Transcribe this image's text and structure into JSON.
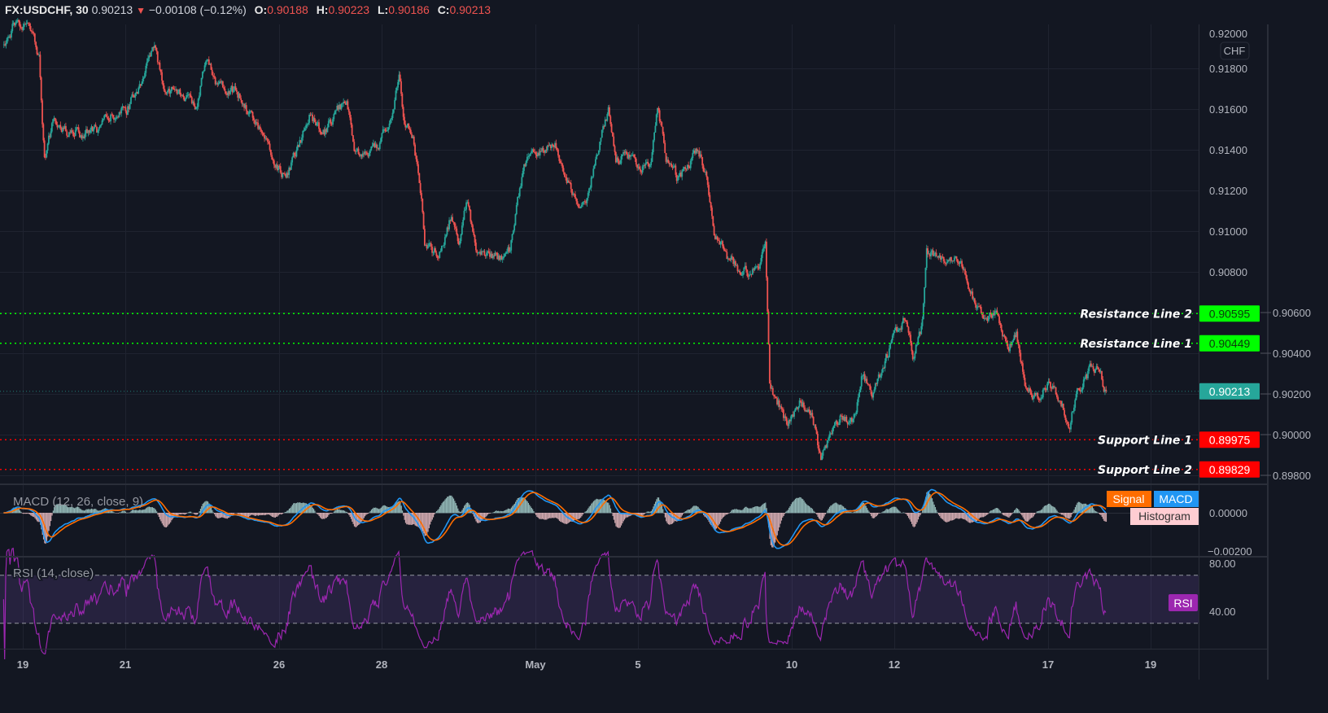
{
  "header": {
    "symbol": "FX:USDCHF, 30",
    "last": "0.90213",
    "change": "−0.00108 (−0.12%)",
    "open_label": "O:",
    "open": "0.90188",
    "high_label": "H:",
    "high": "0.90223",
    "low_label": "L:",
    "low": "0.90186",
    "close_label": "C:",
    "close": "0.90213",
    "direction_icon": "triangle-down-icon"
  },
  "colors": {
    "background": "#131722",
    "up": "#26a69a",
    "down": "#ef5350",
    "resistance": "#00ff00",
    "support": "#ff0000",
    "current": "#26a69a",
    "macd": "#2196f3",
    "signal": "#ff6d00",
    "histogram_label": "#ffcdd2",
    "rsi": "#9c27b0"
  },
  "chart_data": [
    {
      "type": "candlestick",
      "title": "FX:USDCHF, 30",
      "currency_label": "CHF",
      "ylim": [
        0.8975,
        0.92
      ],
      "y_ticks": [
        "0.92000",
        "0.91800",
        "0.91600",
        "0.91400",
        "0.91200",
        "0.91000",
        "0.90800",
        "0.90600",
        "0.90400",
        "0.90200",
        "0.90000",
        "0.89800"
      ],
      "x_ticks": [
        {
          "label": "19",
          "day": "04-19"
        },
        {
          "label": "21",
          "day": "04-21"
        },
        {
          "label": "26",
          "day": "04-26"
        },
        {
          "label": "28",
          "day": "04-28"
        },
        {
          "label": "May",
          "day": "05-03"
        },
        {
          "label": "5",
          "day": "05-05"
        },
        {
          "label": "10",
          "day": "05-10"
        },
        {
          "label": "12",
          "day": "05-12"
        },
        {
          "label": "17",
          "day": "05-17"
        },
        {
          "label": "19",
          "day": "05-19"
        }
      ],
      "grid": true,
      "close_path": [
        [
          "04-16 15:00",
          0.91896
        ],
        [
          "04-16 19:00",
          0.91996
        ],
        [
          "04-19 04:30",
          0.91996
        ],
        [
          "04-19 07:30",
          0.91856
        ],
        [
          "04-19 10:00",
          0.91356
        ],
        [
          "04-19 14:00",
          0.91536
        ],
        [
          "04-19 20:00",
          0.91496
        ],
        [
          "04-20 03:30",
          0.91476
        ],
        [
          "04-20 11:00",
          0.91496
        ],
        [
          "04-20 18:30",
          0.91576
        ],
        [
          "04-21 00:30",
          0.91596
        ],
        [
          "04-21 08:00",
          0.91756
        ],
        [
          "04-21 13:30",
          0.91896
        ],
        [
          "04-21 17:30",
          0.91716
        ],
        [
          "04-22 01:00",
          0.91676
        ],
        [
          "04-22 09:00",
          0.91616
        ],
        [
          "04-22 14:30",
          0.91856
        ],
        [
          "04-22 18:30",
          0.91736
        ],
        [
          "04-23 02:00",
          0.91696
        ],
        [
          "04-23 07:30",
          0.91636
        ],
        [
          "04-23 15:00",
          0.91496
        ],
        [
          "04-23 21:00",
          0.91356
        ],
        [
          "04-26 03:00",
          0.91256
        ],
        [
          "04-26 09:00",
          0.91416
        ],
        [
          "04-26 14:30",
          0.91576
        ],
        [
          "04-26 20:00",
          0.91456
        ],
        [
          "04-27 02:00",
          0.91576
        ],
        [
          "04-27 07:30",
          0.91656
        ],
        [
          "04-27 11:30",
          0.91396
        ],
        [
          "04-27 17:00",
          0.91356
        ],
        [
          "04-27 23:00",
          0.91436
        ],
        [
          "04-28 05:00",
          0.91576
        ],
        [
          "04-28 08:00",
          0.91796
        ],
        [
          "04-28 10:30",
          0.91536
        ],
        [
          "04-28 14:30",
          0.91456
        ],
        [
          "04-28 18:30",
          0.91176
        ],
        [
          "04-28 20:00",
          0.90936
        ],
        [
          "04-29 02:30",
          0.90876
        ],
        [
          "04-29 08:30",
          0.91076
        ],
        [
          "04-29 12:00",
          0.90936
        ],
        [
          "04-29 16:00",
          0.91156
        ],
        [
          "04-29 20:00",
          0.90896
        ],
        [
          "04-30 04:30",
          0.90856
        ],
        [
          "04-30 12:00",
          0.90916
        ],
        [
          "04-30 16:00",
          0.91176
        ],
        [
          "04-30 20:00",
          0.91356
        ],
        [
          "05-03 04:30",
          0.91396
        ],
        [
          "05-03 10:00",
          0.91416
        ],
        [
          "05-03 16:00",
          0.91216
        ],
        [
          "05-03 20:00",
          0.91096
        ],
        [
          "05-04 00:30",
          0.91176
        ],
        [
          "05-04 04:00",
          0.91356
        ],
        [
          "05-04 10:00",
          0.91596
        ],
        [
          "05-04 13:30",
          0.91336
        ],
        [
          "05-04 17:30",
          0.91376
        ],
        [
          "05-04 23:30",
          0.91336
        ],
        [
          "05-05 05:30",
          0.91296
        ],
        [
          "05-05 09:00",
          0.91616
        ],
        [
          "05-05 13:00",
          0.91376
        ],
        [
          "05-05 18:30",
          0.91256
        ],
        [
          "05-06 00:30",
          0.91336
        ],
        [
          "05-06 04:00",
          0.91416
        ],
        [
          "05-06 08:00",
          0.91256
        ],
        [
          "05-06 12:00",
          0.90976
        ],
        [
          "05-06 17:30",
          0.90876
        ],
        [
          "05-06 23:00",
          0.90816
        ],
        [
          "05-07 05:00",
          0.90776
        ],
        [
          "05-07 09:00",
          0.90856
        ],
        [
          "05-07 11:30",
          0.90936
        ],
        [
          "05-07 13:30",
          0.90256
        ],
        [
          "05-07 18:30",
          0.90136
        ],
        [
          "05-07 22:00",
          0.90036
        ],
        [
          "05-10 04:00",
          0.90156
        ],
        [
          "05-10 09:30",
          0.90096
        ],
        [
          "05-10 13:30",
          0.89876
        ],
        [
          "05-10 17:00",
          0.89976
        ],
        [
          "05-10 23:00",
          0.90096
        ],
        [
          "05-11 04:30",
          0.90056
        ],
        [
          "05-11 08:30",
          0.90276
        ],
        [
          "05-11 14:00",
          0.90216
        ],
        [
          "05-11 20:00",
          0.90376
        ],
        [
          "05-12 01:30",
          0.90516
        ],
        [
          "05-12 05:30",
          0.90576
        ],
        [
          "05-12 09:00",
          0.90376
        ],
        [
          "05-12 13:00",
          0.90536
        ],
        [
          "05-12 15:00",
          0.90896
        ],
        [
          "05-12 20:30",
          0.90876
        ],
        [
          "05-13 02:30",
          0.90856
        ],
        [
          "05-13 08:00",
          0.90836
        ],
        [
          "05-13 12:00",
          0.90696
        ],
        [
          "05-13 17:30",
          0.90556
        ],
        [
          "05-13 23:00",
          0.90596
        ],
        [
          "05-14 05:30",
          0.90416
        ],
        [
          "05-14 09:00",
          0.90496
        ],
        [
          "05-14 13:00",
          0.90256
        ],
        [
          "05-14 18:30",
          0.90176
        ],
        [
          "05-17 00:30",
          0.90256
        ],
        [
          "05-17 06:00",
          0.90156
        ],
        [
          "05-17 10:00",
          0.90056
        ],
        [
          "05-17 13:30",
          0.90216
        ],
        [
          "05-17 19:30",
          0.90316
        ],
        [
          "05-17 23:00",
          0.90336
        ],
        [
          "05-18 03:00",
          0.90213
        ]
      ],
      "levels": [
        {
          "name": "Resistance Line 2",
          "value": 0.90595,
          "label": "0.90595",
          "kind": "resistance"
        },
        {
          "name": "Resistance Line 1",
          "value": 0.90449,
          "label": "0.90449",
          "kind": "resistance"
        },
        {
          "name": "",
          "value": 0.90213,
          "label": "0.90213",
          "kind": "current"
        },
        {
          "name": "Support Line 1",
          "value": 0.89975,
          "label": "0.89975",
          "kind": "support"
        },
        {
          "name": "Support Line 2",
          "value": 0.89829,
          "label": "0.89829",
          "kind": "support"
        }
      ]
    },
    {
      "type": "line",
      "title": "MACD (12, 26, close, 9)",
      "params": {
        "fast": 12,
        "slow": 26,
        "signal": 9
      },
      "legend": [
        "Signal",
        "MACD",
        "Histogram"
      ],
      "y_ticks": [
        "0.00000",
        "−0.00200"
      ],
      "ylim": [
        -0.002,
        0.0012
      ]
    },
    {
      "type": "line",
      "title": "RSI (14, close)",
      "params": {
        "length": 14
      },
      "legend": [
        "RSI"
      ],
      "y_ticks": [
        "80.00",
        "40.00"
      ],
      "bands": [
        30,
        70
      ]
    }
  ]
}
